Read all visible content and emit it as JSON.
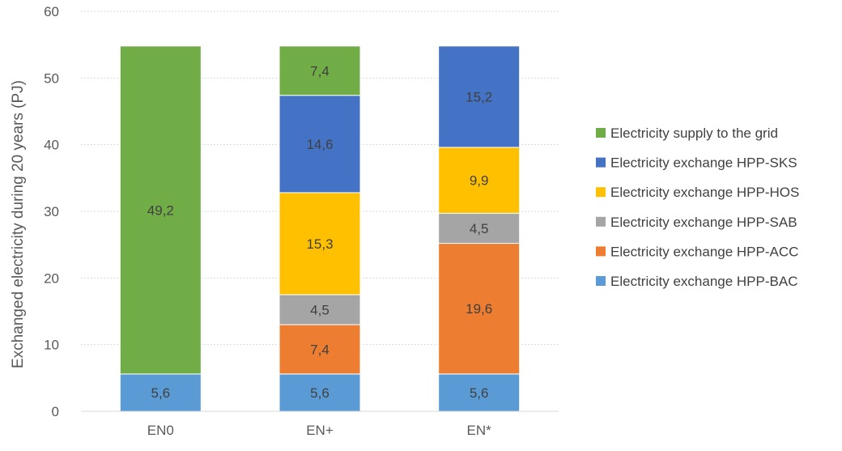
{
  "chart_data": {
    "type": "bar",
    "stacked": true,
    "title": "",
    "xlabel": "",
    "ylabel": "Exchanged electricity during 20 years (PJ)",
    "ylim": [
      0,
      60
    ],
    "yticks": [
      0,
      10,
      20,
      30,
      40,
      50,
      60
    ],
    "grid": true,
    "legend_position": "right",
    "categories": [
      "EN0",
      "EN+",
      "EN*"
    ],
    "series": [
      {
        "name": "Electricity exchange HPP-BAC",
        "color": "#5b9bd5",
        "values": [
          5.6,
          5.6,
          5.6
        ],
        "labels": [
          "5,6",
          "5,6",
          "5,6"
        ]
      },
      {
        "name": "Electricity exchange HPP-ACC",
        "color": "#ed7d31",
        "values": [
          0,
          7.4,
          19.6
        ],
        "labels": [
          "",
          "7,4",
          "19,6"
        ]
      },
      {
        "name": "Electricity exchange HPP-SAB",
        "color": "#a5a5a5",
        "values": [
          0,
          4.5,
          4.5
        ],
        "labels": [
          "",
          "4,5",
          "4,5"
        ]
      },
      {
        "name": "Electricity exchange HPP-HOS",
        "color": "#ffc000",
        "values": [
          0,
          15.3,
          9.9
        ],
        "labels": [
          "",
          "15,3",
          "9,9"
        ]
      },
      {
        "name": "Electricity exchange HPP-SKS",
        "color": "#4472c4",
        "values": [
          0,
          14.6,
          15.2
        ],
        "labels": [
          "",
          "14,6",
          "15,2"
        ]
      },
      {
        "name": "Electricity supply to the grid",
        "color": "#70ad47",
        "values": [
          49.2,
          7.4,
          0
        ],
        "labels": [
          "49,2",
          "7,4",
          ""
        ]
      }
    ]
  }
}
